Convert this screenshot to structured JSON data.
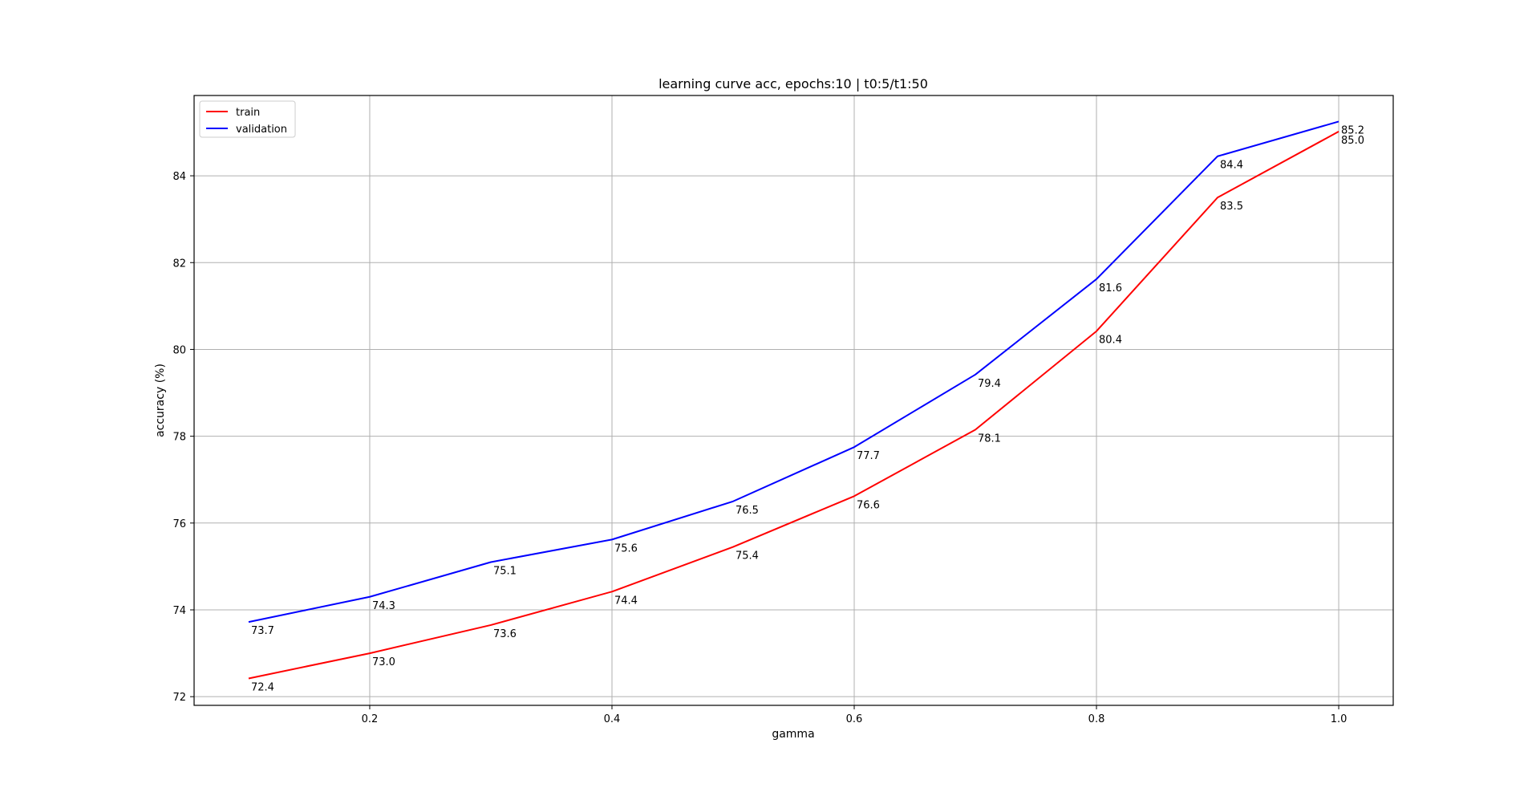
{
  "chart_data": {
    "type": "line",
    "title": "learning curve acc, epochs:10 | t0:5/t1:50",
    "xlabel": "gamma",
    "ylabel": "accuracy (%)",
    "x": [
      0.1,
      0.2,
      0.3,
      0.4,
      0.5,
      0.6,
      0.7,
      0.8,
      0.9,
      1.0
    ],
    "xlim": [
      0.055,
      1.045
    ],
    "ylim": [
      71.8,
      85.85
    ],
    "xticks": [
      0.2,
      0.4,
      0.6,
      0.8,
      1.0
    ],
    "xtick_labels": [
      "0.2",
      "0.4",
      "0.6",
      "0.8",
      "1.0"
    ],
    "yticks": [
      72,
      74,
      76,
      78,
      80,
      82,
      84
    ],
    "ytick_labels": [
      "72",
      "74",
      "76",
      "78",
      "80",
      "82",
      "84"
    ],
    "grid": true,
    "legend_position": "top-left",
    "series": [
      {
        "name": "train",
        "color": "#ff0000",
        "values": [
          72.42,
          73.0,
          73.65,
          74.42,
          75.45,
          76.62,
          78.15,
          80.42,
          83.5,
          85.02
        ],
        "labels": [
          "72.4",
          "73.0",
          "73.6",
          "74.4",
          "75.4",
          "76.6",
          "78.1",
          "80.4",
          "83.5",
          "85.0"
        ]
      },
      {
        "name": "validation",
        "color": "#0000ff",
        "values": [
          73.72,
          74.3,
          75.1,
          75.62,
          76.5,
          77.75,
          79.42,
          81.62,
          84.45,
          85.25
        ],
        "labels": [
          "73.7",
          "74.3",
          "75.1",
          "75.6",
          "76.5",
          "77.7",
          "79.4",
          "81.6",
          "84.4",
          "85.2"
        ]
      }
    ]
  }
}
